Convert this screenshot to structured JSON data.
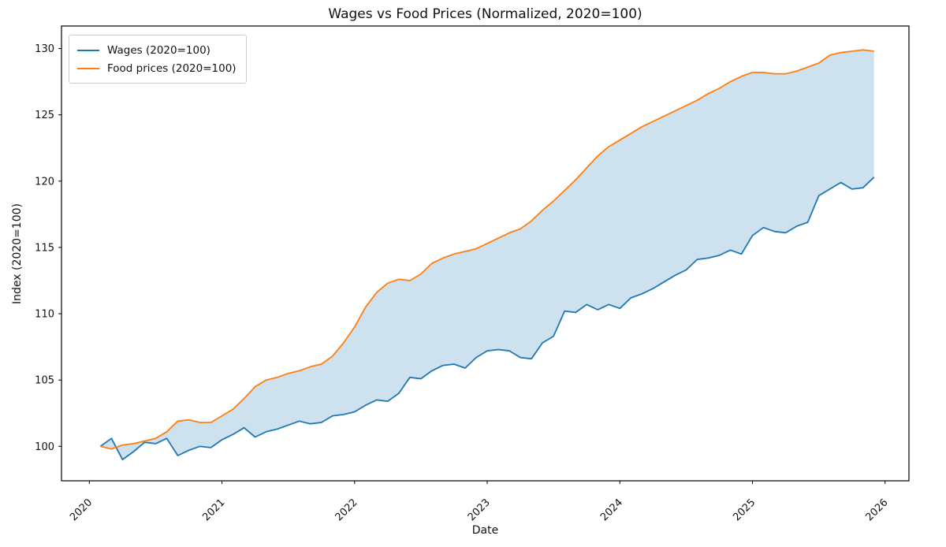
{
  "figure": {
    "title": "Wages vs Food Prices (Normalized, 2020=100)",
    "xlabel": "Date",
    "ylabel": "Index (2020=100)"
  },
  "legend": {
    "position": "upper-left",
    "entries": [
      {
        "label": "Wages (2020=100)",
        "color": "#1f77b4"
      },
      {
        "label": "Food prices (2020=100)",
        "color": "#ff7f0e"
      }
    ]
  },
  "chart_data": {
    "type": "line",
    "title": "Wages vs Food Prices (Normalized, 2020=100)",
    "xlabel": "Date",
    "ylabel": "Index (2020=100)",
    "grid": false,
    "legend_position": "upper-left",
    "fill_between": {
      "between": [
        "Wages (2020=100)",
        "Food prices (2020=100)"
      ],
      "color": "#1f77b4",
      "opacity": 0.22
    },
    "xticks": [
      "2020",
      "2021",
      "2022",
      "2023",
      "2024",
      "2025",
      "2026"
    ],
    "yticks": [
      100,
      105,
      110,
      115,
      120,
      125,
      130
    ],
    "xlim_years": [
      2019.79,
      2026.18
    ],
    "ylim": [
      97.4,
      131.7
    ],
    "x": [
      "2020-01",
      "2020-02",
      "2020-03",
      "2020-04",
      "2020-05",
      "2020-06",
      "2020-07",
      "2020-08",
      "2020-09",
      "2020-10",
      "2020-11",
      "2020-12",
      "2021-01",
      "2021-02",
      "2021-03",
      "2021-04",
      "2021-05",
      "2021-06",
      "2021-07",
      "2021-08",
      "2021-09",
      "2021-10",
      "2021-11",
      "2021-12",
      "2022-01",
      "2022-02",
      "2022-03",
      "2022-04",
      "2022-05",
      "2022-06",
      "2022-07",
      "2022-08",
      "2022-09",
      "2022-10",
      "2022-11",
      "2022-12",
      "2023-01",
      "2023-02",
      "2023-03",
      "2023-04",
      "2023-05",
      "2023-06",
      "2023-07",
      "2023-08",
      "2023-09",
      "2023-10",
      "2023-11",
      "2023-12",
      "2024-01",
      "2024-02",
      "2024-03",
      "2024-04",
      "2024-05",
      "2024-06",
      "2024-07",
      "2024-08",
      "2024-09",
      "2024-10",
      "2024-11",
      "2024-12",
      "2025-01",
      "2025-02",
      "2025-03",
      "2025-04",
      "2025-05",
      "2025-06",
      "2025-07",
      "2025-08",
      "2025-09",
      "2025-10",
      "2025-11"
    ],
    "series": [
      {
        "name": "Wages (2020=100)",
        "color": "#1f77b4",
        "values": [
          100.0,
          100.6,
          99.0,
          99.6,
          100.3,
          100.2,
          100.6,
          99.3,
          99.7,
          100.0,
          99.9,
          100.5,
          100.9,
          101.4,
          100.7,
          101.1,
          101.3,
          101.6,
          101.9,
          101.7,
          101.8,
          102.3,
          102.4,
          102.6,
          103.1,
          103.5,
          103.4,
          104.0,
          105.2,
          105.1,
          105.7,
          106.1,
          106.2,
          105.9,
          106.7,
          107.2,
          107.3,
          107.2,
          106.7,
          106.6,
          107.8,
          108.3,
          110.2,
          110.1,
          110.7,
          110.3,
          110.7,
          110.4,
          111.2,
          111.5,
          111.9,
          112.4,
          112.9,
          113.3,
          114.1,
          114.2,
          114.4,
          114.8,
          114.5,
          115.9,
          116.5,
          116.2,
          116.1,
          116.6,
          116.9,
          118.9,
          119.4,
          119.9,
          119.4,
          119.5,
          120.3
        ]
      },
      {
        "name": "Food prices (2020=100)",
        "color": "#ff7f0e",
        "values": [
          100.0,
          99.8,
          100.1,
          100.2,
          100.4,
          100.6,
          101.1,
          101.9,
          102.0,
          101.8,
          101.8,
          102.3,
          102.8,
          103.6,
          104.5,
          105.0,
          105.2,
          105.5,
          105.7,
          106.0,
          106.2,
          106.8,
          107.8,
          109.0,
          110.5,
          111.6,
          112.3,
          112.6,
          112.5,
          113.0,
          113.8,
          114.2,
          114.5,
          114.7,
          114.9,
          115.3,
          115.7,
          116.1,
          116.4,
          117.0,
          117.8,
          118.5,
          119.3,
          120.1,
          121.0,
          121.9,
          122.6,
          123.1,
          123.6,
          124.1,
          124.5,
          124.9,
          125.3,
          125.7,
          126.1,
          126.6,
          127.0,
          127.5,
          127.9,
          128.2,
          128.2,
          128.1,
          128.1,
          128.3,
          128.6,
          128.9,
          129.5,
          129.7,
          129.8,
          129.9,
          129.8
        ]
      }
    ]
  }
}
